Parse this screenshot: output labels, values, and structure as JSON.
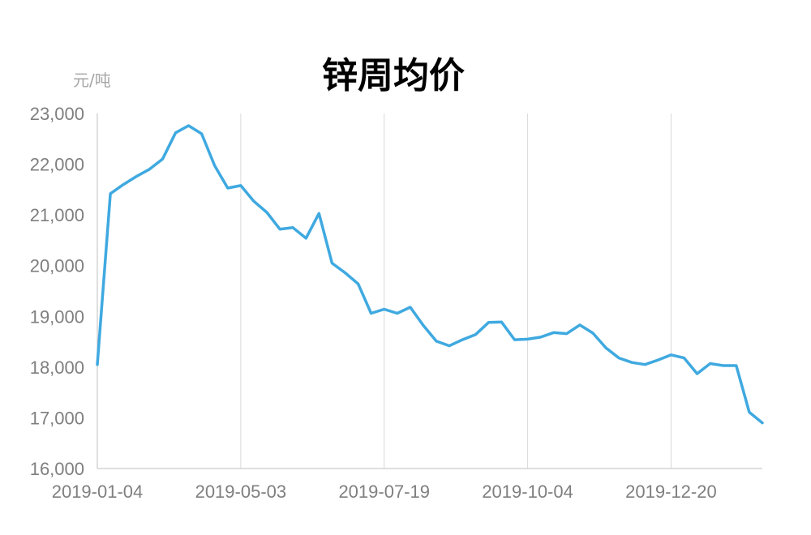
{
  "chart_data": {
    "type": "line",
    "title": "锌周均价",
    "unit_label": "元/吨",
    "ylim": [
      16000,
      23000
    ],
    "y_ticks": [
      16000,
      17000,
      18000,
      19000,
      20000,
      21000,
      22000,
      23000
    ],
    "y_tick_labels": [
      "16,000",
      "17,000",
      "18,000",
      "19,000",
      "20,000",
      "21,000",
      "22,000",
      "23,000"
    ],
    "x_tick_labels": [
      "2019-01-04",
      "2019-05-03",
      "2019-07-19",
      "2019-10-04",
      "2019-12-20"
    ],
    "x_tick_positions": [
      0,
      11,
      22,
      33,
      44
    ],
    "grid": "vertical",
    "legend": "none",
    "line_color": "#3fa9e0",
    "series": [
      {
        "values": [
          18050,
          21420,
          21600,
          21760,
          21900,
          22100,
          22620,
          22760,
          22600,
          21970,
          21530,
          21580,
          21270,
          21050,
          20720,
          20750,
          20540,
          21030,
          20050,
          19860,
          19640,
          19060,
          19140,
          19060,
          19180,
          18820,
          18510,
          18420,
          18540,
          18640,
          18880,
          18890,
          18540,
          18550,
          18590,
          18680,
          18660,
          18830,
          18670,
          18380,
          18180,
          18090,
          18050,
          18140,
          18240,
          18180,
          17870,
          18070,
          18030,
          18030,
          17110,
          16900
        ]
      }
    ]
  }
}
